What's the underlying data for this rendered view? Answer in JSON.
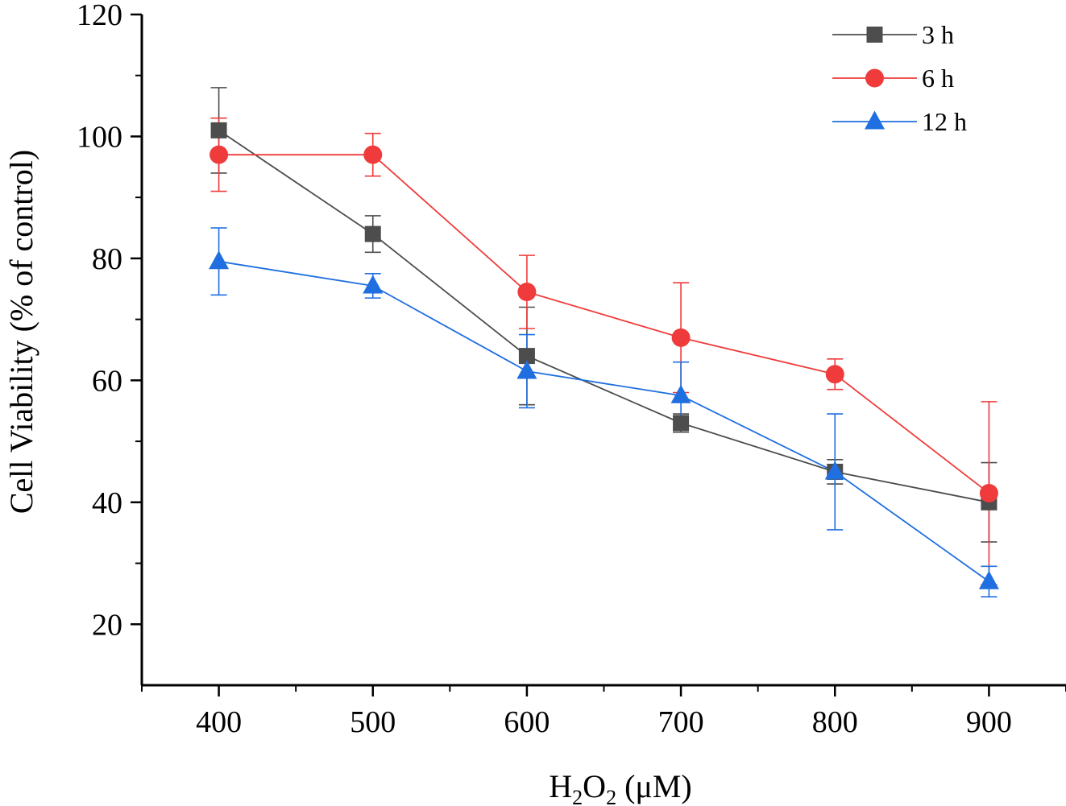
{
  "chart_data": {
    "type": "line",
    "title": "",
    "xlabel": {
      "base": "H",
      "sub1": "2",
      "mid": "O",
      "sub2": "2",
      "unit": " (μM)"
    },
    "ylabel": "Cell Viability (% of control)",
    "xlim": [
      350,
      950
    ],
    "ylim": [
      10,
      120
    ],
    "x": [
      400,
      500,
      600,
      700,
      800,
      900
    ],
    "xticks": [
      "400",
      "500",
      "600",
      "700",
      "800",
      "900"
    ],
    "yticks": [
      "20",
      "40",
      "60",
      "80",
      "100",
      "120"
    ],
    "legend_position": "top-right",
    "grid": false,
    "series": [
      {
        "name": "3 h",
        "color": "#4d4d4d",
        "marker": "square",
        "values": [
          101,
          84,
          64,
          53,
          45,
          40
        ],
        "errors": [
          7,
          3,
          8,
          1.5,
          2,
          6.5
        ]
      },
      {
        "name": "6 h",
        "color": "#ef3b3b",
        "marker": "circle",
        "values": [
          97,
          97,
          74.5,
          67,
          61,
          41.5
        ],
        "errors": [
          6,
          3.5,
          6,
          9,
          2.5,
          15
        ]
      },
      {
        "name": "12 h",
        "color": "#1f6fe0",
        "marker": "triangle",
        "values": [
          79.5,
          75.5,
          61.5,
          57.5,
          45,
          27
        ],
        "errors": [
          5.5,
          2,
          6,
          5.5,
          9.5,
          2.5
        ]
      }
    ]
  }
}
